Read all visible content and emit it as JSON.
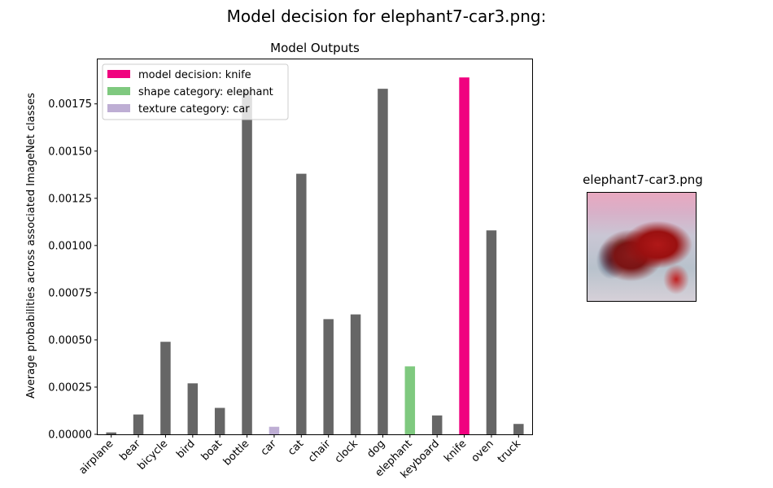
{
  "figure": {
    "suptitle": "Model decision for elephant7-car3.png:"
  },
  "chart_data": {
    "type": "bar",
    "title": "Model Outputs",
    "xlabel": "",
    "ylabel": "Average probabilities across associated ImageNet classes",
    "categories": [
      "airplane",
      "bear",
      "bicycle",
      "bird",
      "boat",
      "bottle",
      "car",
      "cat",
      "chair",
      "clock",
      "dog",
      "elephant",
      "keyboard",
      "knife",
      "oven",
      "truck"
    ],
    "values": [
      1e-05,
      0.000105,
      0.00049,
      0.00027,
      0.00014,
      0.00182,
      4e-05,
      0.00138,
      0.00061,
      0.000635,
      0.00183,
      0.00036,
      0.0001,
      0.00189,
      0.00108,
      5.5e-05
    ],
    "highlight": {
      "knife": "decision",
      "elephant": "shape",
      "car": "texture"
    },
    "colors": {
      "default": "#666666",
      "decision": "#f0027f",
      "shape": "#7fc97f",
      "texture": "#beaed4"
    },
    "ylim": [
      0,
      0.00199
    ],
    "yticks": [
      0,
      0.00025,
      0.0005,
      0.00075,
      0.001,
      0.00125,
      0.0015,
      0.00175
    ],
    "ytick_labels": [
      "0.00000",
      "0.00025",
      "0.00050",
      "0.00075",
      "0.00100",
      "0.00125",
      "0.00150",
      "0.00175"
    ],
    "legend": {
      "position": "top-left",
      "entries": [
        {
          "key": "decision",
          "label": "model decision: knife"
        },
        {
          "key": "shape",
          "label": "shape category: elephant"
        },
        {
          "key": "texture",
          "label": "texture category: car"
        }
      ]
    },
    "grid": false
  },
  "thumbnail": {
    "title": "elephant7-car3.png"
  }
}
